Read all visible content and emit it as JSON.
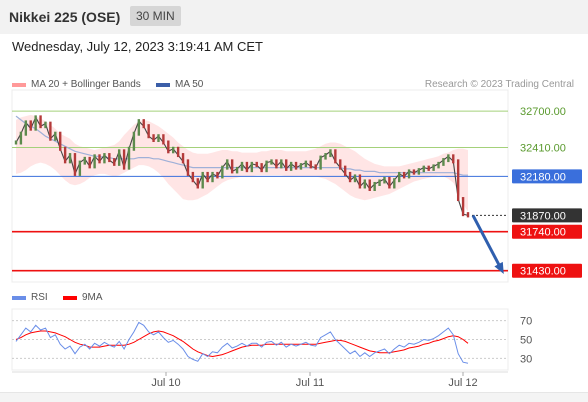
{
  "header": {
    "title": "Nikkei 225 (OSE)",
    "timeframe": "30 MIN"
  },
  "date_line": "Wednesday, July 12, 2023 3:19:41 AM CET",
  "legend": {
    "bb_label": "MA 20 + Bollinger Bands",
    "bb_color": "#ff9999",
    "ma50_label": "MA 50",
    "ma50_color": "#3b5ea8"
  },
  "credit": "Research © 2023 Trading Central",
  "rsi_legend": {
    "rsi_label": "RSI",
    "rsi_color": "#6a8ee8",
    "ma_label": "9MA",
    "ma_color": "#ff0000"
  },
  "chart_data": [
    {
      "type": "line",
      "title": "Nikkei 225 (OSE)",
      "ylim": [
        31340,
        32820
      ],
      "price_levels": [
        {
          "value": 32700,
          "label": "32700.00",
          "color": "#a4d17a",
          "kind": "target"
        },
        {
          "value": 32410,
          "label": "32410.00",
          "color": "#a4d17a",
          "kind": "target"
        },
        {
          "value": 32180,
          "label": "32180.00",
          "color": "#3a6fdc",
          "kind": "pivot"
        },
        {
          "value": 31870,
          "label": "31870.00",
          "color": "#333333",
          "kind": "last"
        },
        {
          "value": 31740,
          "label": "31740.00",
          "color": "#ee1111",
          "kind": "support"
        },
        {
          "value": 31430,
          "label": "31430.00",
          "color": "#ee1111",
          "kind": "support"
        }
      ],
      "x_ticks": [
        "Jul 10",
        "Jul 11",
        "Jul 12"
      ],
      "price": [
        32450,
        32520,
        32610,
        32560,
        32650,
        32580,
        32600,
        32480,
        32520,
        32400,
        32300,
        32350,
        32200,
        32290,
        32320,
        32260,
        32340,
        32300,
        32350,
        32310,
        32280,
        32380,
        32250,
        32400,
        32520,
        32620,
        32580,
        32500,
        32470,
        32500,
        32450,
        32380,
        32400,
        32350,
        32300,
        32200,
        32150,
        32100,
        32200,
        32150,
        32200,
        32180,
        32250,
        32300,
        32220,
        32240,
        32280,
        32230,
        32280,
        32270,
        32230,
        32290,
        32300,
        32260,
        32300,
        32240,
        32280,
        32250,
        32270,
        32290,
        32260,
        32250,
        32330,
        32350,
        32380,
        32300,
        32250,
        32200,
        32150,
        32180,
        32100,
        32140,
        32080,
        32120,
        32140,
        32160,
        32100,
        32150,
        32200,
        32180,
        32220,
        32210,
        32230,
        32250,
        32240,
        32260,
        32280,
        32310,
        32340,
        32300,
        32000,
        31880,
        31870
      ],
      "ma20_upper": [
        32630,
        32650,
        32660,
        32670,
        32660,
        32640,
        32620,
        32590,
        32560,
        32520,
        32500,
        32480,
        32440,
        32420,
        32410,
        32400,
        32390,
        32400,
        32410,
        32420,
        32430,
        32460,
        32510,
        32550,
        32590,
        32620,
        32630,
        32620,
        32600,
        32580,
        32550,
        32520,
        32490,
        32450,
        32420,
        32390,
        32370,
        32360,
        32360,
        32360,
        32370,
        32380,
        32390,
        32390,
        32380,
        32380,
        32370,
        32370,
        32370,
        32370,
        32380,
        32380,
        32390,
        32390,
        32390,
        32380,
        32380,
        32380,
        32380,
        32380,
        32390,
        32400,
        32420,
        32440,
        32450,
        32450,
        32440,
        32420,
        32400,
        32380,
        32350,
        32320,
        32300,
        32280,
        32270,
        32260,
        32260,
        32260,
        32260,
        32270,
        32280,
        32290,
        32300,
        32310,
        32320,
        32330,
        32340,
        32360,
        32370,
        32390,
        32400,
        32400,
        32390
      ],
      "ma20_lower": [
        32200,
        32210,
        32230,
        32260,
        32280,
        32290,
        32280,
        32260,
        32230,
        32190,
        32150,
        32120,
        32110,
        32120,
        32140,
        32170,
        32190,
        32200,
        32200,
        32190,
        32180,
        32190,
        32210,
        32230,
        32250,
        32270,
        32270,
        32260,
        32240,
        32210,
        32170,
        32120,
        32080,
        32040,
        32000,
        31990,
        31990,
        32000,
        32020,
        32040,
        32070,
        32100,
        32130,
        32150,
        32160,
        32170,
        32180,
        32180,
        32180,
        32190,
        32190,
        32190,
        32190,
        32190,
        32190,
        32180,
        32180,
        32180,
        32180,
        32180,
        32180,
        32180,
        32170,
        32160,
        32140,
        32120,
        32090,
        32060,
        32030,
        32010,
        32000,
        31990,
        32000,
        32010,
        32020,
        32030,
        32040,
        32060,
        32080,
        32100,
        32120,
        32140,
        32150,
        32160,
        32170,
        32180,
        32190,
        32180,
        32160,
        32130,
        32060,
        31960,
        31900
      ],
      "ma50": [
        32660,
        32630,
        32600,
        32580,
        32560,
        32530,
        32500,
        32480,
        32460,
        32440,
        32420,
        32400,
        32380,
        32370,
        32360,
        32350,
        32340,
        32340,
        32330,
        32330,
        32320,
        32320,
        32320,
        32320,
        32320,
        32330,
        32330,
        32330,
        32320,
        32320,
        32310,
        32300,
        32290,
        32280,
        32270,
        32260,
        32250,
        32250,
        32250,
        32250,
        32250,
        32250,
        32250,
        32250,
        32250,
        32250,
        32250,
        32250,
        32250,
        32250,
        32250,
        32250,
        32250,
        32250,
        32250,
        32250,
        32250,
        32250,
        32250,
        32250,
        32250,
        32250,
        32250,
        32250,
        32250,
        32250,
        32250,
        32240,
        32240,
        32230,
        32230,
        32220,
        32220,
        32220,
        32210,
        32210,
        32210,
        32210,
        32210,
        32210,
        32210,
        32210,
        32210,
        32210,
        32210,
        32210,
        32210,
        32210,
        32210,
        32210,
        32200,
        32190,
        32190
      ],
      "projection": {
        "from": 31870,
        "to": 31430
      }
    },
    {
      "type": "line",
      "title": "RSI",
      "ylim": [
        22,
        78
      ],
      "levels": [
        70,
        50,
        30
      ],
      "series": [
        {
          "name": "RSI",
          "values": [
            48,
            55,
            62,
            58,
            65,
            60,
            62,
            52,
            55,
            45,
            40,
            43,
            35,
            42,
            45,
            40,
            46,
            43,
            47,
            44,
            42,
            48,
            40,
            50,
            58,
            68,
            65,
            58,
            55,
            58,
            52,
            47,
            49,
            45,
            40,
            32,
            29,
            27,
            35,
            32,
            37,
            36,
            42,
            46,
            41,
            43,
            46,
            43,
            46,
            46,
            42,
            47,
            48,
            44,
            47,
            42,
            45,
            43,
            45,
            47,
            44,
            43,
            52,
            55,
            58,
            50,
            45,
            40,
            35,
            38,
            32,
            36,
            32,
            36,
            38,
            40,
            35,
            40,
            44,
            42,
            46,
            45,
            47,
            50,
            49,
            51,
            54,
            58,
            62,
            55,
            35,
            26,
            25
          ]
        },
        {
          "name": "9MA",
          "values": [
            50,
            52,
            55,
            57,
            58,
            59,
            59,
            58,
            57,
            55,
            53,
            50,
            47,
            45,
            44,
            42,
            42,
            42,
            43,
            44,
            44,
            44,
            44,
            45,
            47,
            50,
            53,
            56,
            58,
            59,
            58,
            56,
            54,
            51,
            48,
            44,
            40,
            37,
            35,
            33,
            32,
            33,
            34,
            36,
            38,
            40,
            42,
            43,
            44,
            44,
            44,
            45,
            45,
            45,
            45,
            45,
            45,
            45,
            45,
            45,
            45,
            45,
            46,
            47,
            48,
            49,
            49,
            48,
            46,
            44,
            42,
            40,
            38,
            37,
            36,
            36,
            36,
            37,
            38,
            39,
            41,
            42,
            43,
            45,
            46,
            48,
            49,
            51,
            53,
            54,
            53,
            50,
            46
          ]
        }
      ]
    }
  ]
}
